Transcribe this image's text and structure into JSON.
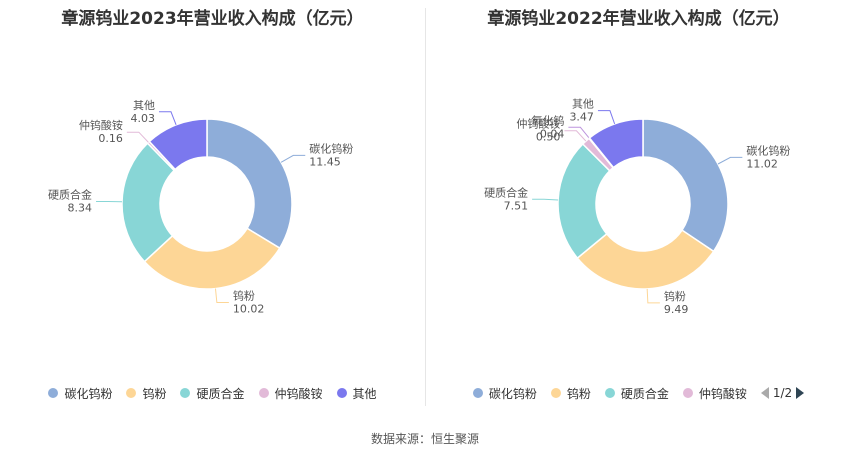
{
  "colors": [
    "#8eadd9",
    "#fdd696",
    "#88d6d6",
    "#e2bad8",
    "#7b78ee",
    "#bd94dd"
  ],
  "chart_data": [
    {
      "type": "pie",
      "title": "章源钨业2023年营业收入构成（亿元）",
      "slices": [
        {
          "name": "碳化钨粉",
          "value": 11.45
        },
        {
          "name": "钨粉",
          "value": 10.02
        },
        {
          "name": "硬质合金",
          "value": 8.34
        },
        {
          "name": "仲钨酸铵",
          "value": 0.16
        },
        {
          "name": "其他",
          "value": 4.03
        }
      ],
      "legend": [
        "碳化钨粉",
        "钨粉",
        "硬质合金",
        "仲钨酸铵",
        "其他"
      ]
    },
    {
      "type": "pie",
      "title": "章源钨业2022年营业收入构成（亿元）",
      "slices": [
        {
          "name": "碳化钨粉",
          "value": 11.02
        },
        {
          "name": "钨粉",
          "value": 9.49
        },
        {
          "name": "硬质合金",
          "value": 7.51
        },
        {
          "name": "仲钨酸铵",
          "value": 0.5
        },
        {
          "name": "氧化钨",
          "value": 0.04
        },
        {
          "name": "其他",
          "value": 3.47
        }
      ],
      "legend": [
        "碳化钨粉",
        "钨粉",
        "硬质合金",
        "仲钨酸铵"
      ],
      "pager": "1/2"
    }
  ],
  "source": "数据来源：恒生聚源"
}
